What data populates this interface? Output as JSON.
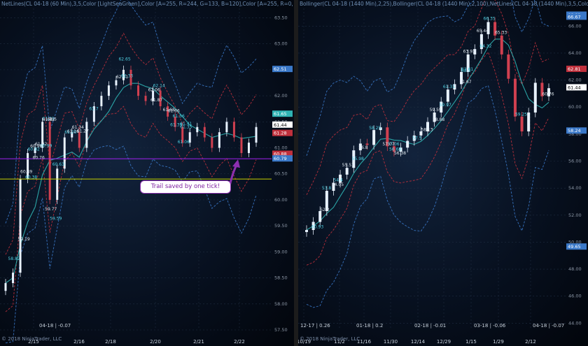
{
  "left": {
    "header": "NetLines(CL 04-18 (60 Min),3,5,Color [LightSeaGreen],Color [A=255, R=244, G=133, B=120],Color [A=255, R=0, G=131, B=",
    "copyright": "© 2018 NinjaTrader, LLC",
    "x_labels": [
      "2/15",
      "2/16",
      "2/18",
      "2/20",
      "2/21",
      "2/22"
    ],
    "y_labels": [
      "63.50",
      "63.00",
      "62.50",
      "62.00",
      "61.50",
      "61.00",
      "60.50",
      "60.00",
      "59.50",
      "59.00",
      "58.50",
      "58.00",
      "57.50"
    ],
    "price_tags": [
      "62.51",
      "61.65",
      "61.44",
      "61.28",
      "60.88",
      "60.79"
    ],
    "chart_labels": [
      "62.65",
      "62.31",
      "62.33",
      "62.06",
      "62.14",
      "61.87",
      "61.7",
      "61.66",
      "61.56",
      "61.68",
      "61.51",
      "61.5",
      "61.39",
      "61.34",
      "61.35",
      "61.26",
      "61.25",
      "61.27",
      "61.06",
      "61.02",
      "60.99",
      "60.98",
      "60.92",
      "60.76",
      "60.63",
      "60.49",
      "60.38",
      "59.77",
      "59.59",
      "59.19",
      "58.82",
      "61.49",
      "61.41"
    ],
    "cycle_label": "04-18 | -0.07",
    "callout": "Trail saved by one tick!",
    "colors": {
      "purple_line": "#a020f0",
      "yellow_line": "#c8d200",
      "up": "#e8f2ff",
      "down": "#d04050",
      "teal": "#2fb3b3",
      "bb_red": "#c0303c",
      "bb_blue": "#3a78c8"
    }
  },
  "right": {
    "header": "Bollinger(CL 04-18 (1440 Min),2,25),Bollinger(CL 04-18 (1440 Min),2,100),NetLines(CL 04-18 (1440 Min),3,5,Color [Lig",
    "copyright": "© 2018 NinjaTrader, LLC",
    "x_labels": [
      "10/19",
      "11/2",
      "11/16",
      "11/30",
      "12/14",
      "12/29",
      "1/15",
      "1/29",
      "2/12"
    ],
    "y_labels": [
      "66.00",
      "64.00",
      "62.00",
      "60.00",
      "58.00",
      "56.00",
      "54.00",
      "52.00",
      "50.00",
      "48.00",
      "46.00",
      "44.00"
    ],
    "price_tags": [
      "66.82",
      "66.67",
      "62.81",
      "61.44",
      "58.24",
      "49.65"
    ],
    "chart_labels": [
      "66.35",
      "65.33",
      "64.32",
      "63.93",
      "62.5",
      "61.67",
      "61.31",
      "60.76",
      "59.97",
      "59.59",
      "59.25",
      "58.88",
      "58.25",
      "58.13",
      "57.5",
      "57.07",
      "57.06",
      "56.8",
      "56.68",
      "56.38",
      "55.98",
      "55.51",
      "54.4",
      "54.05",
      "53.8",
      "52.2",
      "50.93",
      "65.44",
      "62.61"
    ],
    "cycle_labels": [
      "12-17 | 0.26",
      "01-18 | 0.2",
      "02-18 | -0.01",
      "03-18 | -0.06",
      "04-18 | -0.07"
    ]
  },
  "chart_data": [
    {
      "type": "candlestick",
      "title": "CL 04-18 (60 Min)",
      "x_ticks": [
        "2/15",
        "2/16",
        "2/18",
        "2/20",
        "2/21",
        "2/22"
      ],
      "ylim": [
        57.5,
        63.6
      ],
      "grid": true,
      "close_path": [
        58.4,
        58.6,
        60.4,
        60.9,
        61.0,
        61.5,
        60.0,
        60.6,
        61.2,
        61.3,
        61.0,
        61.5,
        61.8,
        62.0,
        62.2,
        62.3,
        62.5,
        62.2,
        62.0,
        61.9,
        62.1,
        61.8,
        61.6,
        61.4,
        61.1,
        61.3,
        61.4,
        61.2,
        61.0,
        61.3,
        61.5,
        61.2,
        60.9,
        61.1,
        61.4
      ],
      "bollinger": {
        "upper_25": "red",
        "lower_25": "red",
        "upper_100": "blue",
        "lower_100": "blue"
      },
      "horizontal_lines": [
        60.79,
        60.4
      ],
      "last_price": 61.44
    },
    {
      "type": "candlestick",
      "title": "CL 04-18 (1440 Min)",
      "x_ticks": [
        "10/19",
        "11/2",
        "11/16",
        "11/30",
        "12/14",
        "12/29",
        "1/15",
        "1/29",
        "2/12"
      ],
      "ylim": [
        43.5,
        67.0
      ],
      "grid": true,
      "close_path": [
        50.9,
        51.5,
        52.3,
        53.8,
        54.4,
        55.0,
        55.5,
        56.8,
        57.3,
        57.2,
        58.3,
        58.5,
        57.1,
        56.7,
        57.0,
        57.5,
        57.9,
        58.2,
        58.9,
        59.6,
        60.4,
        61.3,
        61.7,
        62.6,
        63.9,
        64.3,
        65.4,
        66.3,
        65.3,
        63.9,
        62.1,
        59.3,
        58.2,
        59.6,
        61.8,
        60.8,
        61.4
      ],
      "last_price": 61.44
    }
  ]
}
